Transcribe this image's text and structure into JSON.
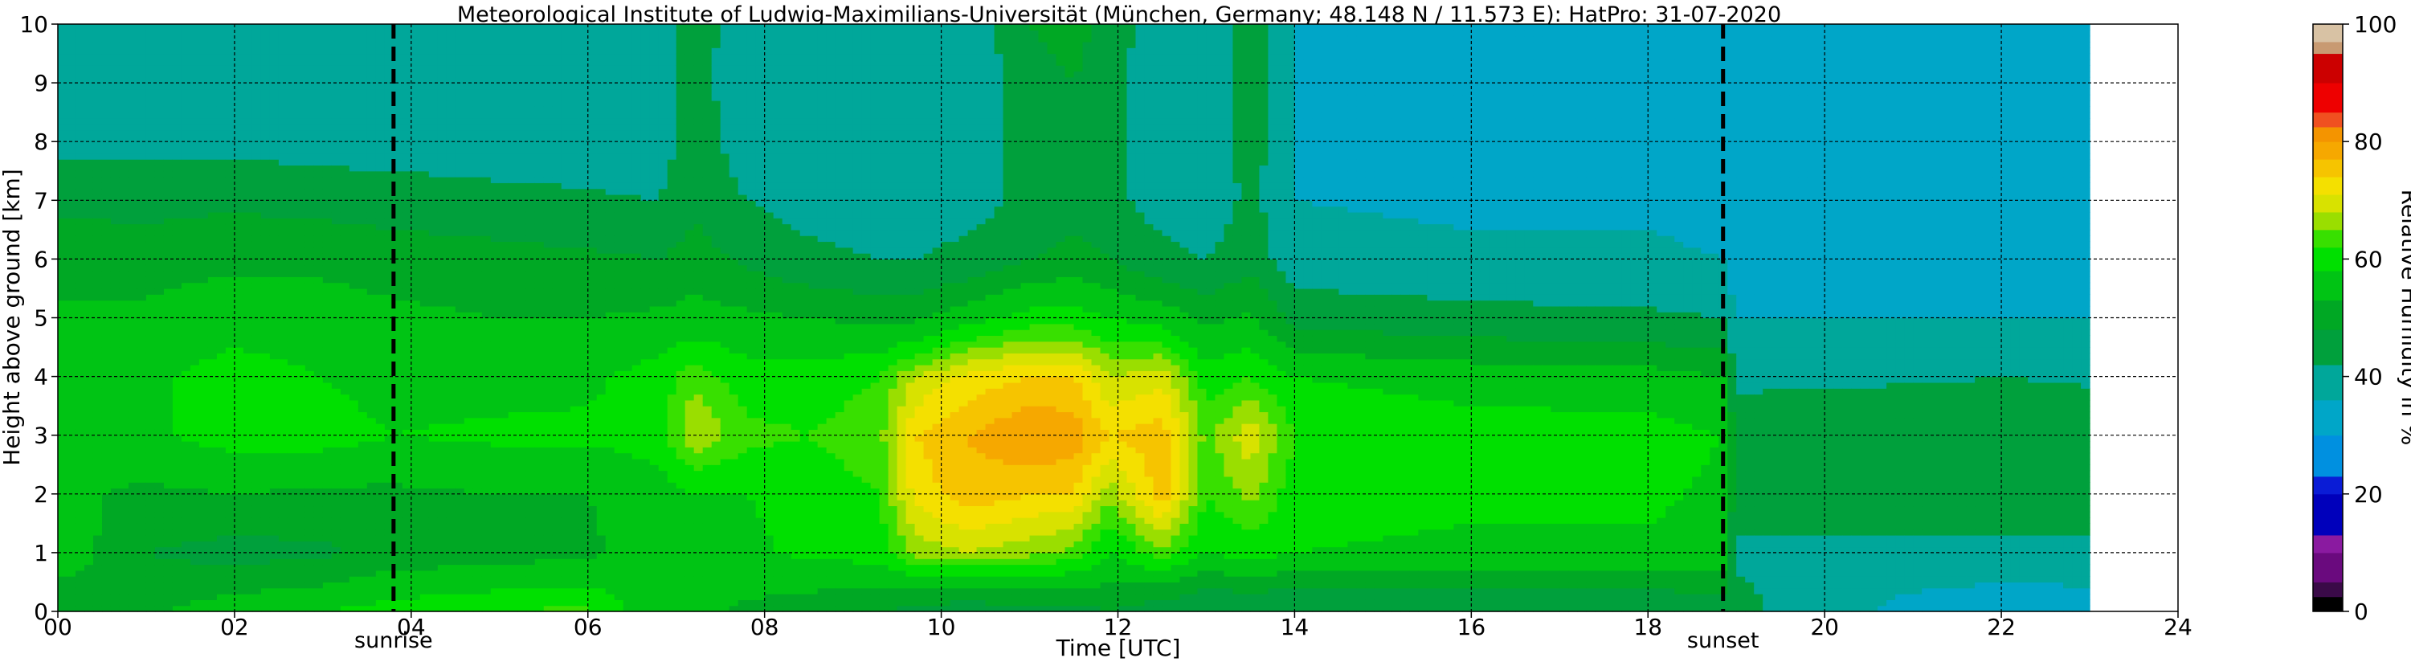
{
  "chart_data": {
    "type": "heatmap",
    "title": "Meteorological Institute of Ludwig-Maximilians-Universität (München, Germany; 48.148 N / 11.573 E):    HatPro: 31-07-2020",
    "xlabel": "Time [UTC]",
    "ylabel": "Height above ground [km]",
    "xlim": [
      0,
      24
    ],
    "ylim": [
      0,
      10
    ],
    "data_end_hour": 23.0,
    "x_ticks": [
      {
        "value": 0,
        "label": "00"
      },
      {
        "value": 2,
        "label": "02"
      },
      {
        "value": 4,
        "label": "04"
      },
      {
        "value": 6,
        "label": "06"
      },
      {
        "value": 8,
        "label": "08"
      },
      {
        "value": 10,
        "label": "10"
      },
      {
        "value": 12,
        "label": "12"
      },
      {
        "value": 14,
        "label": "14"
      },
      {
        "value": 16,
        "label": "16"
      },
      {
        "value": 18,
        "label": "18"
      },
      {
        "value": 20,
        "label": "20"
      },
      {
        "value": 22,
        "label": "22"
      },
      {
        "value": 24,
        "label": "24"
      }
    ],
    "y_ticks": [
      {
        "value": 0,
        "label": "0"
      },
      {
        "value": 1,
        "label": "1"
      },
      {
        "value": 2,
        "label": "2"
      },
      {
        "value": 3,
        "label": "3"
      },
      {
        "value": 4,
        "label": "4"
      },
      {
        "value": 5,
        "label": "5"
      },
      {
        "value": 6,
        "label": "6"
      },
      {
        "value": 7,
        "label": "7"
      },
      {
        "value": 8,
        "label": "8"
      },
      {
        "value": 9,
        "label": "9"
      },
      {
        "value": 10,
        "label": "10"
      }
    ],
    "grid": true,
    "events": [
      {
        "label": "sunrise",
        "hour": 3.8
      },
      {
        "label": "sunset",
        "hour": 18.85
      }
    ],
    "colorbar": {
      "label": "Relative Humidity in %",
      "range": [
        0,
        100
      ],
      "ticks": [
        {
          "value": 0,
          "label": "0"
        },
        {
          "value": 20,
          "label": "20"
        },
        {
          "value": 40,
          "label": "40"
        },
        {
          "value": 60,
          "label": "60"
        },
        {
          "value": 80,
          "label": "80"
        },
        {
          "value": 100,
          "label": "100"
        }
      ],
      "levels": [
        {
          "from": 0,
          "to": 2.5,
          "color": "#000000"
        },
        {
          "from": 2.5,
          "to": 5,
          "color": "#3a0a48"
        },
        {
          "from": 5,
          "to": 10,
          "color": "#6a0a7e"
        },
        {
          "from": 10,
          "to": 13,
          "color": "#8a1aa0"
        },
        {
          "from": 13,
          "to": 20,
          "color": "#0000bb"
        },
        {
          "from": 20,
          "to": 23,
          "color": "#0a1cd6"
        },
        {
          "from": 23,
          "to": 30,
          "color": "#0090e0"
        },
        {
          "from": 30,
          "to": 36,
          "color": "#00a6c8"
        },
        {
          "from": 36,
          "to": 42,
          "color": "#00a79a"
        },
        {
          "from": 42,
          "to": 48,
          "color": "#00a03c"
        },
        {
          "from": 48,
          "to": 53,
          "color": "#00a824"
        },
        {
          "from": 53,
          "to": 58,
          "color": "#00c414"
        },
        {
          "from": 58,
          "to": 62,
          "color": "#00e000"
        },
        {
          "from": 62,
          "to": 65,
          "color": "#38e000"
        },
        {
          "from": 65,
          "to": 68,
          "color": "#9ade00"
        },
        {
          "from": 68,
          "to": 71,
          "color": "#d8e200"
        },
        {
          "from": 71,
          "to": 74,
          "color": "#f4e000"
        },
        {
          "from": 74,
          "to": 77,
          "color": "#f6c400"
        },
        {
          "from": 77,
          "to": 80,
          "color": "#f6a800"
        },
        {
          "from": 80,
          "to": 82.5,
          "color": "#f49400"
        },
        {
          "from": 82.5,
          "to": 85,
          "color": "#f05020"
        },
        {
          "from": 85,
          "to": 90,
          "color": "#ee0000"
        },
        {
          "from": 90,
          "to": 95,
          "color": "#cc0000"
        },
        {
          "from": 95,
          "to": 97,
          "color": "#c89a72"
        },
        {
          "from": 97,
          "to": 100,
          "color": "#d8c2a4"
        }
      ]
    },
    "rh_profiles": [
      {
        "t": 0.0,
        "rh": [
          48,
          57,
          54,
          56,
          58,
          54,
          51,
          47,
          40,
          39,
          39
        ]
      },
      {
        "t": 1.0,
        "rh": [
          52,
          48,
          52,
          57,
          57,
          54,
          51,
          46,
          40,
          39,
          39
        ]
      },
      {
        "t": 2.0,
        "rh": [
          56,
          46,
          53,
          60,
          60,
          56,
          52,
          47,
          40,
          39,
          39
        ]
      },
      {
        "t": 3.0,
        "rh": [
          58,
          47,
          52,
          60,
          58,
          55,
          52,
          46,
          39,
          38,
          38
        ]
      },
      {
        "t": 3.8,
        "rh": [
          60,
          50,
          52,
          58,
          56,
          54,
          51,
          45,
          39,
          38,
          38
        ]
      },
      {
        "t": 5.0,
        "rh": [
          62,
          51,
          53,
          59,
          56,
          53,
          50,
          44,
          38,
          37,
          37
        ]
      },
      {
        "t": 6.0,
        "rh": [
          63,
          52,
          53,
          59,
          57,
          53,
          49,
          43,
          38,
          37,
          37
        ]
      },
      {
        "t": 6.8,
        "rh": [
          54,
          56,
          56,
          60,
          60,
          54,
          48,
          42,
          38,
          37,
          37
        ]
      },
      {
        "t": 7.2,
        "rh": [
          54,
          57,
          58,
          68,
          64,
          55,
          50,
          47,
          46,
          45,
          46
        ]
      },
      {
        "t": 7.8,
        "rh": [
          52,
          57,
          58,
          63,
          60,
          54,
          47,
          42,
          38,
          37,
          37
        ]
      },
      {
        "t": 8.5,
        "rh": [
          50,
          59,
          60,
          62,
          60,
          53,
          44,
          39,
          37,
          37,
          37
        ]
      },
      {
        "t": 9.3,
        "rh": [
          48,
          60,
          62,
          64,
          62,
          52,
          42,
          37,
          36,
          36,
          36
        ]
      },
      {
        "t": 9.7,
        "rh": [
          46,
          66,
          72,
          74,
          68,
          52,
          42,
          38,
          37,
          37,
          37
        ]
      },
      {
        "t": 10.3,
        "rh": [
          44,
          68,
          76,
          77,
          72,
          56,
          44,
          39,
          38,
          37,
          37
        ]
      },
      {
        "t": 11.0,
        "rh": [
          46,
          66,
          74,
          80,
          74,
          60,
          48,
          44,
          45,
          46,
          48
        ]
      },
      {
        "t": 11.5,
        "rh": [
          46,
          64,
          74,
          79,
          74,
          60,
          50,
          46,
          47,
          48,
          50
        ]
      },
      {
        "t": 11.9,
        "rh": [
          48,
          58,
          66,
          74,
          68,
          58,
          48,
          44,
          44,
          45,
          46
        ]
      },
      {
        "t": 12.5,
        "rh": [
          44,
          64,
          76,
          76,
          70,
          56,
          44,
          39,
          38,
          37,
          37
        ]
      },
      {
        "t": 13.0,
        "rh": [
          42,
          58,
          62,
          64,
          60,
          52,
          42,
          37,
          36,
          36,
          36
        ]
      },
      {
        "t": 13.5,
        "rh": [
          42,
          60,
          66,
          70,
          62,
          54,
          46,
          44,
          45,
          46,
          47
        ]
      },
      {
        "t": 14.0,
        "rh": [
          42,
          58,
          60,
          62,
          58,
          46,
          38,
          36,
          36,
          36,
          36
        ]
      },
      {
        "t": 16.0,
        "rh": [
          42,
          57,
          59,
          60,
          56,
          44,
          37,
          35,
          35,
          35,
          35
        ]
      },
      {
        "t": 18.0,
        "rh": [
          43,
          57,
          59,
          60,
          55,
          43,
          37,
          35,
          35,
          35,
          35
        ]
      },
      {
        "t": 18.85,
        "rh": [
          44,
          56,
          57,
          58,
          53,
          42,
          36,
          34,
          34,
          34,
          34
        ]
      },
      {
        "t": 19.0,
        "rh": [
          44,
          41,
          45,
          47,
          40,
          36,
          32,
          31,
          32,
          33,
          33
        ]
      },
      {
        "t": 20.0,
        "rh": [
          38,
          40,
          46,
          47,
          41,
          36,
          31,
          31,
          32,
          33,
          33
        ]
      },
      {
        "t": 21.0,
        "rh": [
          34,
          40,
          47,
          48,
          41,
          36,
          31,
          31,
          32,
          33,
          33
        ]
      },
      {
        "t": 22.0,
        "rh": [
          33,
          39,
          48,
          48,
          42,
          36,
          32,
          31,
          32,
          33,
          33
        ]
      },
      {
        "t": 23.0,
        "rh": [
          33,
          40,
          47,
          47,
          41,
          36,
          32,
          31,
          32,
          33,
          33
        ]
      }
    ]
  }
}
